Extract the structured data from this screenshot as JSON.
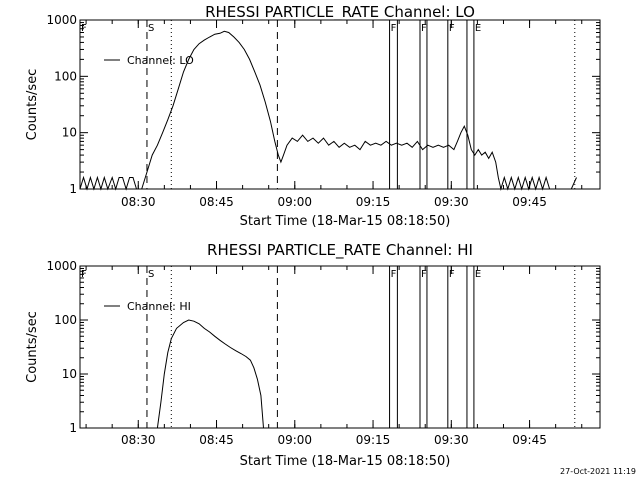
{
  "footer": {
    "date": "27-Oct-2021 11:19"
  },
  "chart_data": [
    {
      "type": "line",
      "title": "RHESSI PARTICLE_RATE Channel: LO",
      "xlabel": "Start Time (18-Mar-15 08:18:50)",
      "ylabel": "Counts/sec",
      "yscale": "log",
      "xlim": [
        "08:18:50",
        "09:58:30"
      ],
      "ylim": [
        1,
        1000
      ],
      "x_ticks": [
        "08:30",
        "08:45",
        "09:00",
        "09:15",
        "09:30",
        "09:45"
      ],
      "y_ticks": [
        "1",
        "10",
        "100",
        "1000"
      ],
      "legend": {
        "entries": [
          "Channel: LO"
        ],
        "position": "top-left"
      },
      "annotations": [
        {
          "label": "S",
          "time": "08:31:40",
          "style": "dashed"
        },
        {
          "label": "",
          "time": "08:36:20",
          "style": "dotted"
        },
        {
          "label": "",
          "time": "08:56:40",
          "style": "dashed"
        },
        {
          "label": "F",
          "time": "09:18:10",
          "style": "solid"
        },
        {
          "label": "",
          "time": "09:19:40",
          "style": "solid"
        },
        {
          "label": "F",
          "time": "09:24:00",
          "style": "solid"
        },
        {
          "label": "",
          "time": "09:25:20",
          "style": "solid"
        },
        {
          "label": "F",
          "time": "09:29:20",
          "style": "solid"
        },
        {
          "label": "",
          "time": "09:33:00",
          "style": "solid"
        },
        {
          "label": "E",
          "time": "09:34:20",
          "style": "solid"
        },
        {
          "label": "",
          "time": "09:53:40",
          "style": "dotted"
        }
      ],
      "series": [
        {
          "name": "Channel: LO",
          "points": [
            [
              "08:18:50",
              1
            ],
            [
              "08:19:30",
              1.6
            ],
            [
              "08:20:10",
              1
            ],
            [
              "08:20:50",
              1.6
            ],
            [
              "08:21:30",
              1
            ],
            [
              "08:22:10",
              1.6
            ],
            [
              "08:22:50",
              1
            ],
            [
              "08:23:30",
              1.6
            ],
            [
              "08:24:10",
              1
            ],
            [
              "08:25:00",
              1.6
            ],
            [
              "08:25:40",
              1
            ],
            [
              "08:26:20",
              1.6
            ],
            [
              "08:27:00",
              1.6
            ],
            [
              "08:27:40",
              1
            ],
            [
              "08:28:20",
              1.6
            ],
            [
              "08:29:00",
              1.6
            ],
            [
              "08:29:40",
              1
            ],
            [
              "08:30:40",
              1
            ],
            [
              "08:31:40",
              2
            ],
            [
              "08:32:40",
              4
            ],
            [
              "08:33:40",
              6
            ],
            [
              "08:34:40",
              10
            ],
            [
              "08:35:40",
              17
            ],
            [
              "08:36:40",
              30
            ],
            [
              "08:37:40",
              60
            ],
            [
              "08:38:40",
              120
            ],
            [
              "08:39:40",
              200
            ],
            [
              "08:40:40",
              300
            ],
            [
              "08:41:40",
              380
            ],
            [
              "08:42:40",
              440
            ],
            [
              "08:43:40",
              500
            ],
            [
              "08:44:40",
              560
            ],
            [
              "08:45:40",
              580
            ],
            [
              "08:46:30",
              630
            ],
            [
              "08:47:20",
              600
            ],
            [
              "08:48:20",
              500
            ],
            [
              "08:49:20",
              400
            ],
            [
              "08:50:20",
              300
            ],
            [
              "08:51:20",
              200
            ],
            [
              "08:52:20",
              120
            ],
            [
              "08:53:20",
              70
            ],
            [
              "08:54:20",
              35
            ],
            [
              "08:55:20",
              16
            ],
            [
              "08:56:10",
              7
            ],
            [
              "08:56:50",
              4
            ],
            [
              "08:57:20",
              3
            ],
            [
              "08:57:50",
              4
            ],
            [
              "08:58:30",
              6
            ],
            [
              "08:59:30",
              8
            ],
            [
              "09:00:30",
              7
            ],
            [
              "09:01:30",
              9
            ],
            [
              "09:02:30",
              7
            ],
            [
              "09:03:30",
              8
            ],
            [
              "09:04:30",
              6.5
            ],
            [
              "09:05:30",
              8
            ],
            [
              "09:06:30",
              6
            ],
            [
              "09:07:30",
              7
            ],
            [
              "09:08:30",
              5.5
            ],
            [
              "09:09:30",
              6.5
            ],
            [
              "09:10:30",
              5.5
            ],
            [
              "09:11:30",
              6
            ],
            [
              "09:12:30",
              5
            ],
            [
              "09:13:30",
              7
            ],
            [
              "09:14:30",
              6
            ],
            [
              "09:15:30",
              6.5
            ],
            [
              "09:16:30",
              6
            ],
            [
              "09:17:30",
              7
            ],
            [
              "09:18:30",
              6
            ],
            [
              "09:19:30",
              6.5
            ],
            [
              "09:20:30",
              6
            ],
            [
              "09:21:30",
              6.5
            ],
            [
              "09:22:30",
              5.5
            ],
            [
              "09:23:30",
              7
            ],
            [
              "09:24:30",
              5
            ],
            [
              "09:25:30",
              6
            ],
            [
              "09:26:30",
              5.5
            ],
            [
              "09:27:30",
              6
            ],
            [
              "09:28:30",
              5.5
            ],
            [
              "09:29:30",
              6
            ],
            [
              "09:30:30",
              5
            ],
            [
              "09:31:10",
              7
            ],
            [
              "09:31:50",
              10
            ],
            [
              "09:32:30",
              13
            ],
            [
              "09:33:10",
              9
            ],
            [
              "09:33:50",
              5
            ],
            [
              "09:34:30",
              4
            ],
            [
              "09:35:10",
              5
            ],
            [
              "09:35:50",
              4
            ],
            [
              "09:36:30",
              4.5
            ],
            [
              "09:37:10",
              3.5
            ],
            [
              "09:37:50",
              4.5
            ],
            [
              "09:38:30",
              3
            ],
            [
              "09:39:00",
              1.6
            ],
            [
              "09:39:30",
              1
            ],
            [
              "09:40:10",
              1.6
            ],
            [
              "09:40:50",
              1
            ],
            [
              "09:41:30",
              1.6
            ],
            [
              "09:42:10",
              1
            ],
            [
              "09:42:50",
              1.6
            ],
            [
              "09:43:30",
              1
            ],
            [
              "09:44:10",
              1.6
            ],
            [
              "09:44:50",
              1
            ],
            [
              "09:45:30",
              1.6
            ],
            [
              "09:46:10",
              1
            ],
            [
              "09:46:50",
              1.6
            ],
            [
              "09:47:30",
              1
            ],
            [
              "09:48:10",
              1.6
            ],
            [
              "09:48:50",
              1
            ],
            [
              "09:53:00",
              1
            ],
            [
              "09:54:00",
              1.6
            ]
          ]
        }
      ]
    },
    {
      "type": "line",
      "title": "RHESSI PARTICLE_RATE Channel: HI",
      "xlabel": "Start Time (18-Mar-15 08:18:50)",
      "ylabel": "Counts/sec",
      "yscale": "log",
      "xlim": [
        "08:18:50",
        "09:58:30"
      ],
      "ylim": [
        1,
        1000
      ],
      "x_ticks": [
        "08:30",
        "08:45",
        "09:00",
        "09:15",
        "09:30",
        "09:45"
      ],
      "y_ticks": [
        "1",
        "10",
        "100",
        "1000"
      ],
      "legend": {
        "entries": [
          "Channel: HI"
        ],
        "position": "top-left"
      },
      "annotations": [
        {
          "label": "S",
          "time": "08:31:40",
          "style": "dashed"
        },
        {
          "label": "",
          "time": "08:36:20",
          "style": "dotted"
        },
        {
          "label": "",
          "time": "08:56:40",
          "style": "dashed"
        },
        {
          "label": "F",
          "time": "09:18:10",
          "style": "solid"
        },
        {
          "label": "",
          "time": "09:19:40",
          "style": "solid"
        },
        {
          "label": "F",
          "time": "09:24:00",
          "style": "solid"
        },
        {
          "label": "",
          "time": "09:25:20",
          "style": "solid"
        },
        {
          "label": "F",
          "time": "09:29:20",
          "style": "solid"
        },
        {
          "label": "",
          "time": "09:33:00",
          "style": "solid"
        },
        {
          "label": "E",
          "time": "09:34:20",
          "style": "solid"
        },
        {
          "label": "",
          "time": "09:53:40",
          "style": "dotted"
        }
      ],
      "series": [
        {
          "name": "Channel: HI",
          "points": [
            [
              "08:33:40",
              1
            ],
            [
              "08:34:20",
              3
            ],
            [
              "08:35:00",
              10
            ],
            [
              "08:35:40",
              25
            ],
            [
              "08:36:20",
              45
            ],
            [
              "08:37:20",
              70
            ],
            [
              "08:38:40",
              90
            ],
            [
              "08:39:40",
              100
            ],
            [
              "08:40:40",
              95
            ],
            [
              "08:41:40",
              85
            ],
            [
              "08:42:40",
              70
            ],
            [
              "08:43:40",
              60
            ],
            [
              "08:44:40",
              50
            ],
            [
              "08:45:40",
              42
            ],
            [
              "08:46:40",
              36
            ],
            [
              "08:47:40",
              31
            ],
            [
              "08:48:40",
              27
            ],
            [
              "08:49:40",
              24
            ],
            [
              "08:50:40",
              21
            ],
            [
              "08:51:30",
              18
            ],
            [
              "08:52:10",
              13
            ],
            [
              "08:52:50",
              8
            ],
            [
              "08:53:30",
              4
            ],
            [
              "08:54:00",
              1
            ]
          ]
        }
      ]
    }
  ]
}
